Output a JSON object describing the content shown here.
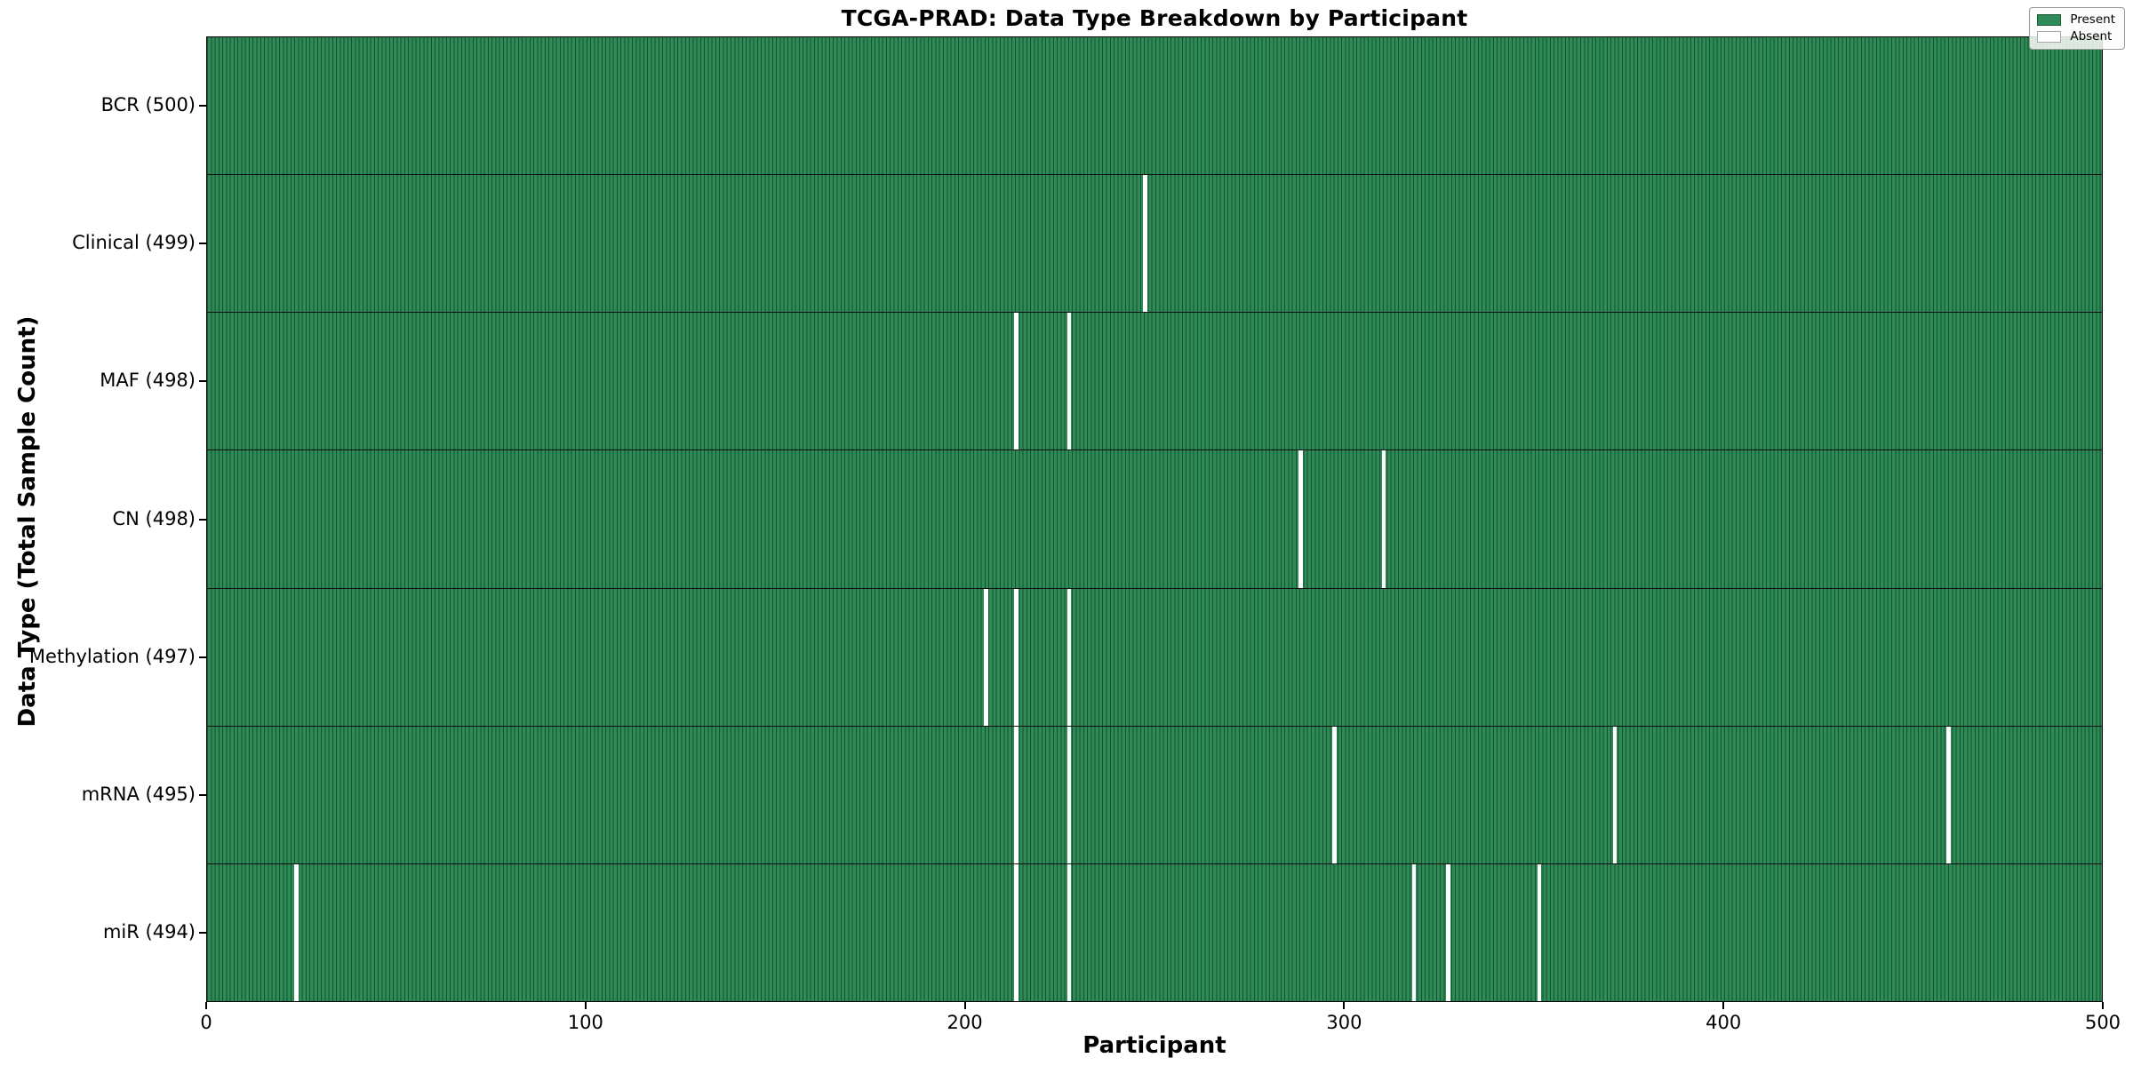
{
  "chart_data": {
    "type": "heatmap",
    "title": "TCGA-PRAD: Data Type Breakdown by Participant",
    "xlabel": "Participant",
    "ylabel": "Data Type (Total Sample Count)",
    "x_ticks": [
      "0",
      "100",
      "200",
      "300",
      "400",
      "500"
    ],
    "x_tick_values": [
      0,
      100,
      200,
      300,
      400,
      500
    ],
    "x_range": [
      0,
      500
    ],
    "n_participants": 500,
    "grid": false,
    "legend_position": "upper-right",
    "legend": [
      {
        "label": "Present",
        "color": "#2e8b57"
      },
      {
        "label": "Absent",
        "color": "#ffffff"
      }
    ],
    "colors": {
      "present_fill": "#2e8b57",
      "present_edge": "#17502f",
      "absent_fill": "#ffffff",
      "row_divider": "#101010",
      "frame": "#000000"
    },
    "rows": [
      {
        "label": "BCR (500)",
        "data_type": "BCR",
        "total": 500,
        "absent_participants": []
      },
      {
        "label": "Clinical (499)",
        "data_type": "Clinical",
        "total": 499,
        "absent_participants": [
          247
        ]
      },
      {
        "label": "MAF (498)",
        "data_type": "MAF",
        "total": 498,
        "absent_participants": [
          213,
          227
        ]
      },
      {
        "label": "CN (498)",
        "data_type": "CN",
        "total": 498,
        "absent_participants": [
          288,
          310
        ]
      },
      {
        "label": "Methylation (497)",
        "data_type": "Methylation",
        "total": 497,
        "absent_participants": [
          205,
          213,
          227
        ]
      },
      {
        "label": "mRNA (495)",
        "data_type": "mRNA",
        "total": 495,
        "absent_participants": [
          213,
          227,
          297,
          371,
          459
        ]
      },
      {
        "label": "miR (494)",
        "data_type": "miR",
        "total": 494,
        "absent_participants": [
          23,
          213,
          227,
          318,
          327,
          351
        ]
      }
    ]
  }
}
